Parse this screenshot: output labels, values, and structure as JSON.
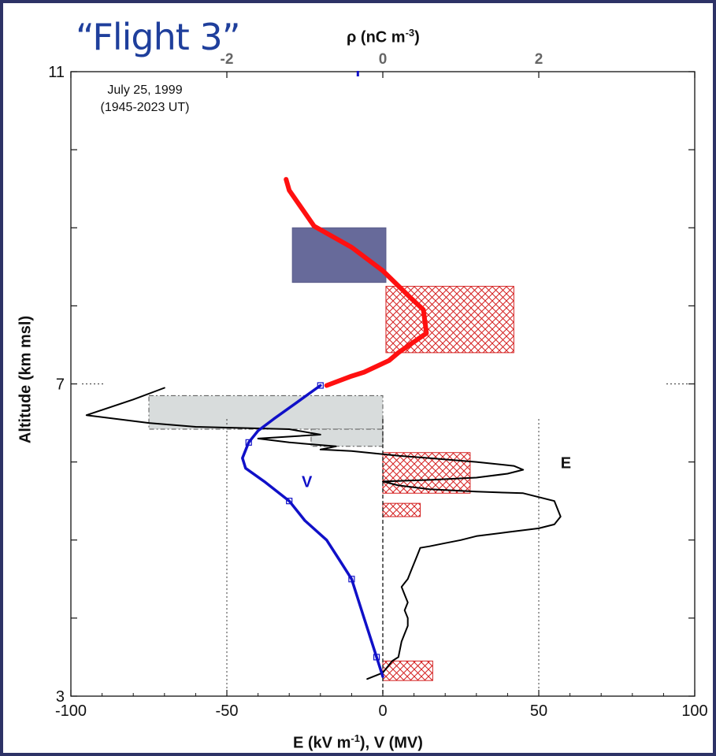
{
  "slide": {
    "title": "“Flight 3”",
    "date_line1": "July 25, 1999",
    "date_line2": "(1945-2023 UT)"
  },
  "chart_data": {
    "type": "line",
    "xlabel": "E (kV m",
    "xlabel_sup": "-1",
    "xlabel_tail": "),  V (MV)",
    "ylabel": "Altitude (km msl)",
    "x_ticks": [
      "-100",
      "-50",
      "0",
      "50",
      "100"
    ],
    "y_ticks": [
      "3",
      "7",
      "11"
    ],
    "xlim": [
      -100,
      100
    ],
    "ylim": [
      3,
      11
    ],
    "top_axis": {
      "label": "ρ (nC m",
      "label_sup": "-3",
      "label_tail": ")",
      "ticks": [
        "-2",
        "0",
        "2"
      ],
      "tick_values_in_E_units": [
        -50,
        0,
        50
      ]
    },
    "annotations": {
      "E_label": "E",
      "V_label": "V"
    },
    "colors": {
      "E": "#000000",
      "V": "#1010c8",
      "V_upper": "#ff1010",
      "neg_charge": "#676a9a",
      "neg_charge_dashed": "#d8dcdc",
      "pos_charge_hatch": "#d42020"
    },
    "series": [
      {
        "key": "E",
        "x": [
          -5,
          0,
          2,
          3,
          5,
          6,
          7,
          8,
          8,
          7,
          8,
          7,
          6,
          7,
          8,
          9,
          10,
          11,
          12,
          15,
          20,
          25,
          30,
          40,
          50,
          55,
          57,
          55,
          45,
          30,
          15,
          5,
          0,
          15,
          30,
          40,
          45,
          42,
          30,
          15,
          5,
          0,
          -5,
          -10,
          -20,
          -15,
          -30,
          -40,
          -20,
          -30,
          -60,
          -75,
          -95,
          -80,
          -70
        ],
        "y": [
          3.22,
          3.3,
          3.4,
          3.45,
          3.5,
          3.7,
          3.8,
          3.9,
          4.0,
          4.1,
          4.2,
          4.3,
          4.4,
          4.45,
          4.5,
          4.6,
          4.7,
          4.8,
          4.9,
          4.92,
          4.96,
          5.0,
          5.05,
          5.1,
          5.15,
          5.2,
          5.3,
          5.5,
          5.6,
          5.62,
          5.65,
          5.7,
          5.75,
          5.77,
          5.8,
          5.85,
          5.9,
          5.95,
          6.0,
          6.05,
          6.08,
          6.1,
          6.12,
          6.14,
          6.16,
          6.2,
          6.25,
          6.3,
          6.35,
          6.42,
          6.45,
          6.5,
          6.6,
          6.8,
          6.95
        ]
      },
      {
        "key": "V",
        "x": [
          0,
          -2,
          -4,
          -6,
          -8,
          -10,
          -14,
          -18,
          -25,
          -30,
          -38,
          -44,
          -45,
          -43,
          -40,
          -35,
          -28,
          -20
        ],
        "y": [
          3.25,
          3.5,
          3.75,
          4.0,
          4.25,
          4.5,
          4.75,
          5.0,
          5.25,
          5.5,
          5.75,
          5.92,
          6.05,
          6.25,
          6.4,
          6.55,
          6.75,
          6.98
        ]
      },
      {
        "key": "V_upper",
        "x": [
          -18,
          -10,
          -6,
          2,
          5,
          14,
          13,
          9,
          0,
          -10,
          -22,
          -30,
          -31
        ],
        "y": [
          6.98,
          7.1,
          7.15,
          7.3,
          7.4,
          7.65,
          7.95,
          8.1,
          8.45,
          8.75,
          9.02,
          9.48,
          9.62
        ]
      }
    ],
    "charge_regions": [
      {
        "kind": "negative",
        "x": [
          -29,
          1
        ],
        "y": [
          8.3,
          9.0
        ]
      },
      {
        "kind": "positive",
        "x": [
          1,
          42
        ],
        "y": [
          7.4,
          8.25
        ]
      },
      {
        "kind": "negative-dashed",
        "x": [
          -75,
          0
        ],
        "y": [
          6.42,
          6.85
        ]
      },
      {
        "kind": "negative-dashed",
        "x": [
          -23,
          0
        ],
        "y": [
          6.2,
          6.42
        ]
      },
      {
        "kind": "positive",
        "x": [
          0,
          28
        ],
        "y": [
          5.6,
          6.12
        ]
      },
      {
        "kind": "positive",
        "x": [
          0,
          12
        ],
        "y": [
          5.3,
          5.47
        ]
      },
      {
        "kind": "positive",
        "x": [
          0,
          16
        ],
        "y": [
          3.2,
          3.45
        ]
      }
    ]
  }
}
